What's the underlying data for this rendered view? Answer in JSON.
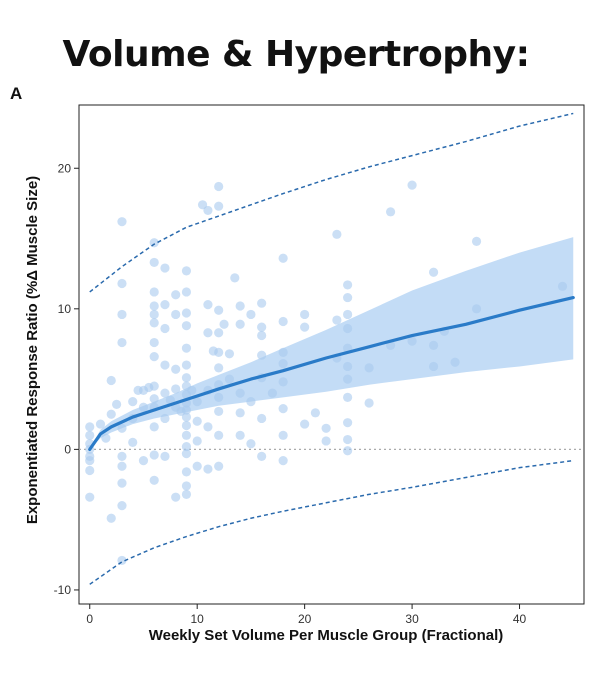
{
  "page": {
    "title": "Volume & Hypertrophy:",
    "panel_letter": "A"
  },
  "chart_data": {
    "type": "scatter",
    "title": "Volume & Hypertrophy:",
    "xlabel": "Weekly Set Volume Per Muscle Group (Fractional)",
    "ylabel": "Exponentiated Response Ratio (%Δ Muscle Size)",
    "xlim": [
      -1,
      46
    ],
    "ylim": [
      -11,
      24.5
    ],
    "xticks": [
      0,
      10,
      20,
      30,
      40
    ],
    "yticks": [
      -10,
      0,
      10,
      20
    ],
    "grid": false,
    "reference_line_y": 0,
    "colors": {
      "points": "#a9c9ef",
      "fit": "#2a7bc8",
      "band": "#a9cdf2",
      "prediction": "#2a6aad"
    },
    "fit": {
      "x": [
        0,
        1,
        2,
        4,
        6,
        8,
        10,
        12,
        15,
        18,
        22,
        26,
        30,
        35,
        40,
        45
      ],
      "y": [
        0,
        1.1,
        1.6,
        2.3,
        2.8,
        3.3,
        3.8,
        4.3,
        5.0,
        5.6,
        6.5,
        7.3,
        8.1,
        8.9,
        9.9,
        10.8
      ],
      "lower": [
        0,
        0.8,
        1.2,
        1.8,
        2.2,
        2.5,
        2.8,
        3.1,
        3.4,
        3.7,
        4.1,
        4.6,
        5.0,
        5.5,
        5.9,
        6.4
      ],
      "upper": [
        0,
        1.4,
        2.0,
        2.8,
        3.4,
        4.0,
        4.7,
        5.3,
        6.2,
        7.2,
        8.5,
        9.9,
        11.3,
        12.7,
        14.0,
        15.1
      ]
    },
    "prediction_interval": {
      "x": [
        0,
        3,
        6,
        9,
        12,
        15,
        18,
        22,
        26,
        30,
        35,
        40,
        45
      ],
      "upper": [
        11.2,
        13.0,
        14.6,
        15.8,
        16.6,
        17.4,
        18.2,
        19.2,
        20.1,
        20.9,
        21.9,
        23.0,
        23.9
      ],
      "lower": [
        -9.6,
        -8.0,
        -7.0,
        -6.2,
        -5.5,
        -4.9,
        -4.4,
        -3.8,
        -3.2,
        -2.7,
        -2.0,
        -1.3,
        -0.8
      ]
    },
    "points": [
      [
        0,
        0.0
      ],
      [
        0,
        -0.5
      ],
      [
        0,
        1.0
      ],
      [
        0,
        1.6
      ],
      [
        0,
        -1.5
      ],
      [
        0,
        -3.4
      ],
      [
        0,
        -0.8
      ],
      [
        0,
        0.4
      ],
      [
        1,
        1.8
      ],
      [
        1.5,
        0.8
      ],
      [
        2,
        4.9
      ],
      [
        2,
        2.5
      ],
      [
        2,
        -4.9
      ],
      [
        2.5,
        3.2
      ],
      [
        3,
        16.2
      ],
      [
        3,
        11.8
      ],
      [
        3,
        9.6
      ],
      [
        3,
        7.6
      ],
      [
        3,
        1.5
      ],
      [
        3,
        -0.5
      ],
      [
        3,
        -1.2
      ],
      [
        3,
        -2.4
      ],
      [
        3,
        -4.0
      ],
      [
        3,
        -7.9
      ],
      [
        4,
        3.4
      ],
      [
        4,
        2.2
      ],
      [
        4,
        0.5
      ],
      [
        4.5,
        4.2
      ],
      [
        5,
        3.0
      ],
      [
        5,
        4.2
      ],
      [
        5,
        -0.8
      ],
      [
        5.5,
        4.4
      ],
      [
        6,
        14.7
      ],
      [
        6,
        13.3
      ],
      [
        6,
        11.2
      ],
      [
        6,
        10.2
      ],
      [
        6,
        9.6
      ],
      [
        6,
        9.0
      ],
      [
        6,
        7.6
      ],
      [
        6,
        6.6
      ],
      [
        6,
        4.5
      ],
      [
        6,
        3.6
      ],
      [
        6,
        3.0
      ],
      [
        6,
        1.6
      ],
      [
        6,
        -0.4
      ],
      [
        6,
        -2.2
      ],
      [
        7,
        12.9
      ],
      [
        7,
        10.3
      ],
      [
        7,
        8.6
      ],
      [
        7,
        6.0
      ],
      [
        7,
        4.0
      ],
      [
        7,
        2.2
      ],
      [
        7,
        -0.5
      ],
      [
        7.5,
        3.5
      ],
      [
        8,
        11.0
      ],
      [
        8,
        9.6
      ],
      [
        8,
        5.7
      ],
      [
        8,
        4.3
      ],
      [
        8,
        3.0
      ],
      [
        8,
        -3.4
      ],
      [
        8.5,
        2.7
      ],
      [
        9,
        12.7
      ],
      [
        9,
        11.2
      ],
      [
        9,
        9.7
      ],
      [
        9,
        8.8
      ],
      [
        9,
        7.2
      ],
      [
        9,
        6.0
      ],
      [
        9,
        5.1
      ],
      [
        9,
        4.5
      ],
      [
        9,
        3.9
      ],
      [
        9,
        3.3
      ],
      [
        9,
        2.8
      ],
      [
        9,
        2.3
      ],
      [
        9,
        1.7
      ],
      [
        9,
        1.0
      ],
      [
        9,
        0.2
      ],
      [
        9,
        -0.3
      ],
      [
        9,
        -1.6
      ],
      [
        9,
        -2.6
      ],
      [
        9,
        -3.2
      ],
      [
        9.5,
        4.2
      ],
      [
        10,
        3.4
      ],
      [
        10,
        2.0
      ],
      [
        10,
        0.6
      ],
      [
        10,
        -1.2
      ],
      [
        10.5,
        17.4
      ],
      [
        11,
        17.0
      ],
      [
        11,
        10.3
      ],
      [
        11,
        8.3
      ],
      [
        11,
        4.2
      ],
      [
        11,
        1.6
      ],
      [
        11,
        -1.4
      ],
      [
        11.5,
        7.0
      ],
      [
        12,
        18.7
      ],
      [
        12,
        17.3
      ],
      [
        12,
        9.9
      ],
      [
        12,
        8.3
      ],
      [
        12,
        6.9
      ],
      [
        12,
        5.8
      ],
      [
        12,
        4.6
      ],
      [
        12,
        3.7
      ],
      [
        12,
        2.7
      ],
      [
        12,
        1.0
      ],
      [
        12,
        -1.2
      ],
      [
        12.5,
        8.9
      ],
      [
        13,
        5.0
      ],
      [
        13,
        6.8
      ],
      [
        13.5,
        12.2
      ],
      [
        14,
        10.2
      ],
      [
        14,
        8.9
      ],
      [
        14,
        4.0
      ],
      [
        14,
        2.6
      ],
      [
        14,
        1.0
      ],
      [
        15,
        9.6
      ],
      [
        15,
        3.4
      ],
      [
        15,
        0.4
      ],
      [
        16,
        10.4
      ],
      [
        16,
        8.7
      ],
      [
        16,
        8.1
      ],
      [
        16,
        6.7
      ],
      [
        16,
        5.1
      ],
      [
        16,
        2.2
      ],
      [
        16,
        -0.5
      ],
      [
        17,
        4.0
      ],
      [
        18,
        13.6
      ],
      [
        18,
        9.1
      ],
      [
        18,
        6.9
      ],
      [
        18,
        6.1
      ],
      [
        18,
        4.8
      ],
      [
        18,
        2.9
      ],
      [
        18,
        1.0
      ],
      [
        18,
        -0.8
      ],
      [
        20,
        9.6
      ],
      [
        20,
        8.7
      ],
      [
        20,
        1.8
      ],
      [
        21,
        2.6
      ],
      [
        22,
        1.5
      ],
      [
        22,
        0.6
      ],
      [
        23,
        15.3
      ],
      [
        23,
        6.5
      ],
      [
        23,
        9.2
      ],
      [
        24,
        11.7
      ],
      [
        24,
        10.8
      ],
      [
        24,
        9.6
      ],
      [
        24,
        8.6
      ],
      [
        24,
        7.2
      ],
      [
        24,
        5.9
      ],
      [
        24,
        5.0
      ],
      [
        24,
        3.7
      ],
      [
        24,
        1.9
      ],
      [
        24,
        0.7
      ],
      [
        24,
        -0.1
      ],
      [
        26,
        5.8
      ],
      [
        26,
        3.3
      ],
      [
        28,
        16.9
      ],
      [
        28,
        7.4
      ],
      [
        30,
        18.8
      ],
      [
        30,
        7.7
      ],
      [
        32,
        12.6
      ],
      [
        32,
        7.4
      ],
      [
        32,
        5.9
      ],
      [
        33,
        8.4
      ],
      [
        34,
        6.2
      ],
      [
        36,
        14.8
      ],
      [
        36,
        10.0
      ],
      [
        44,
        11.6
      ]
    ]
  }
}
